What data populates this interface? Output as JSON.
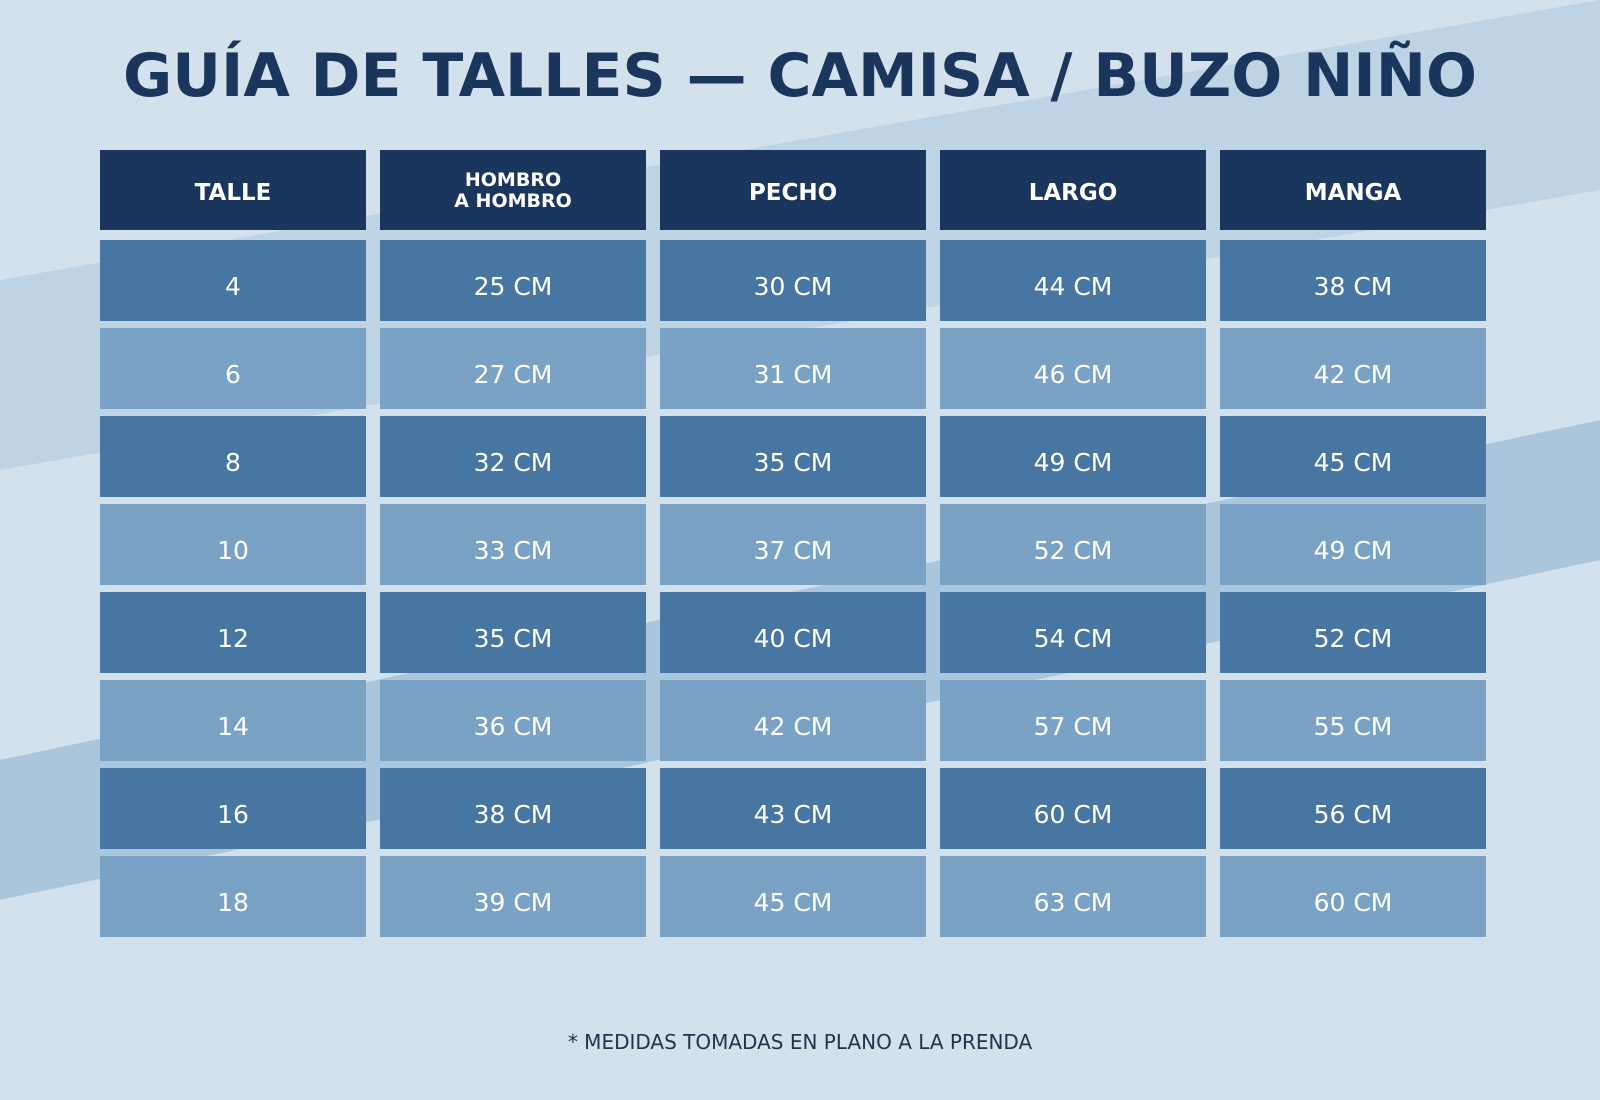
{
  "title": "GUÍA DE TALLES — CAMISA / BUZO NIÑO",
  "table": {
    "headers": [
      "TALLE",
      "HOMBRO\nA HOMBRO",
      "PECHO",
      "LARGO",
      "MANGA"
    ],
    "rows": [
      [
        "4",
        "25 CM",
        "30 CM",
        "44 CM",
        "38 CM"
      ],
      [
        "6",
        "27 CM",
        "31 CM",
        "46 CM",
        "42 CM"
      ],
      [
        "8",
        "32 CM",
        "35 CM",
        "49 CM",
        "45 CM"
      ],
      [
        "10",
        "33 CM",
        "37 CM",
        "52 CM",
        "49 CM"
      ],
      [
        "12",
        "35 CM",
        "40 CM",
        "54 CM",
        "52 CM"
      ],
      [
        "14",
        "36 CM",
        "42 CM",
        "57 CM",
        "55 CM"
      ],
      [
        "16",
        "38 CM",
        "43 CM",
        "60 CM",
        "56 CM"
      ],
      [
        "18",
        "39 CM",
        "45 CM",
        "63 CM",
        "60 CM"
      ]
    ]
  },
  "footnote": "* MEDIDAS TOMADAS EN PLANO A LA PRENDA",
  "colors": {
    "background": "#d3e1ec",
    "header": "#1b365d",
    "row_dark": "#4776a2",
    "row_light": "#7aa2c5",
    "title": "#1b365d"
  }
}
